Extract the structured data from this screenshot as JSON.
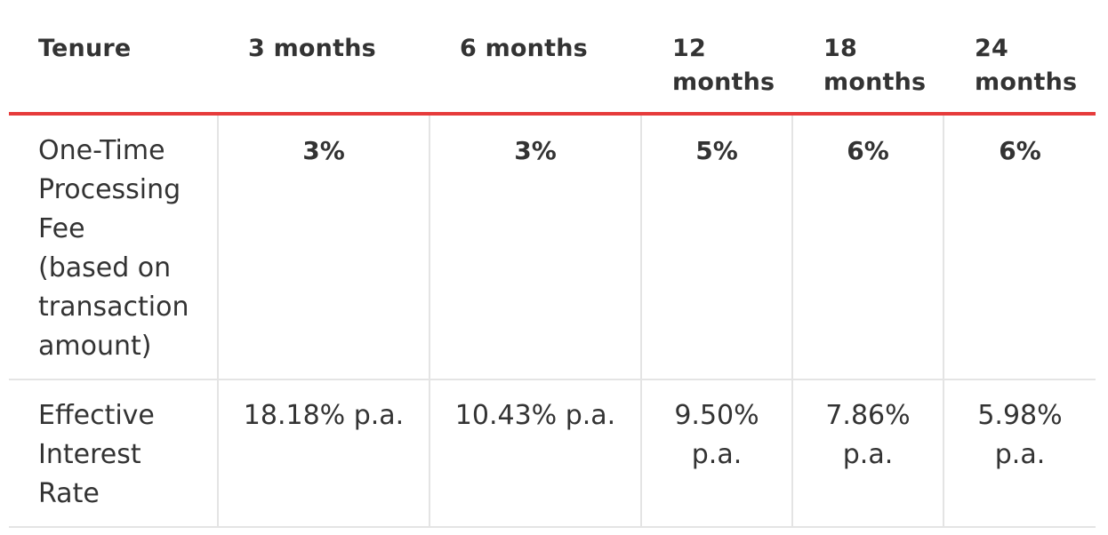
{
  "table": {
    "header": {
      "tenure": "Tenure",
      "col1": "3 months",
      "col2": "6 months",
      "col3_l1": "12",
      "col3_l2": "months",
      "col4_l1": "18",
      "col4_l2": "months",
      "col5_l1": "24",
      "col5_l2": "months"
    },
    "rows": [
      {
        "label_lines": [
          "One-Time",
          "Processing",
          "Fee",
          "(based on",
          "transaction",
          "amount)"
        ],
        "values": [
          "3%",
          "3%",
          "5%",
          "6%",
          "6%"
        ]
      },
      {
        "label_lines": [
          "Effective",
          "Interest",
          "Rate"
        ],
        "values": [
          "18.18% p.a.",
          "10.43% p.a.",
          "9.50%",
          "7.86%",
          "5.98%"
        ],
        "values_l2": [
          "p.a.",
          "p.a.",
          "p.a."
        ]
      }
    ]
  },
  "colors": {
    "accent": "#e63b3b",
    "border": "#e4e4e4",
    "text": "#333333"
  }
}
